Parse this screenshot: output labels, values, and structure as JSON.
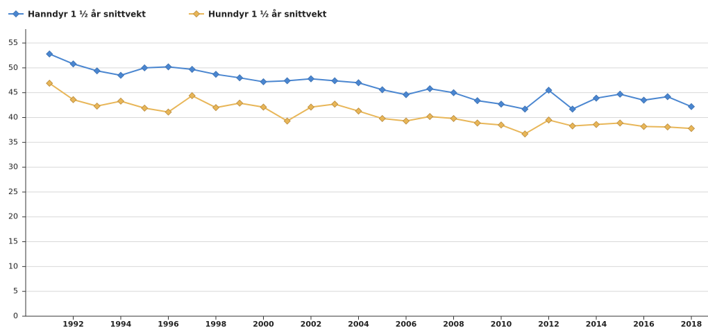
{
  "chart_data": {
    "type": "line",
    "x": [
      1991,
      1992,
      1993,
      1994,
      1995,
      1996,
      1997,
      1998,
      1999,
      2000,
      2001,
      2002,
      2003,
      2004,
      2005,
      2006,
      2007,
      2008,
      2009,
      2010,
      2011,
      2012,
      2013,
      2014,
      2015,
      2016,
      2017,
      2018
    ],
    "series": [
      {
        "name": "Hanndyr 1 ½ år snittvekt",
        "color": "#4a86d0",
        "values": [
          52.8,
          50.8,
          49.4,
          48.5,
          50.0,
          50.2,
          49.7,
          48.7,
          48.0,
          47.2,
          47.4,
          47.8,
          47.4,
          47.0,
          45.6,
          44.6,
          45.8,
          45.0,
          43.4,
          42.7,
          41.7,
          45.5,
          41.7,
          43.9,
          44.7,
          43.5,
          44.2,
          42.2
        ]
      },
      {
        "name": "Hunndyr 1 ½ år snittvekt",
        "color": "#e8b658",
        "values": [
          46.9,
          43.6,
          42.3,
          43.3,
          41.9,
          41.1,
          44.4,
          42.0,
          42.9,
          42.1,
          39.3,
          42.1,
          42.7,
          41.3,
          39.8,
          39.3,
          40.2,
          39.8,
          38.9,
          38.5,
          36.7,
          39.5,
          38.3,
          38.6,
          38.9,
          38.2,
          38.1,
          37.8
        ]
      }
    ],
    "xlim": [
      1990,
      2018.7
    ],
    "xticks": [
      1992,
      1994,
      1996,
      1998,
      2000,
      2002,
      2004,
      2006,
      2008,
      2010,
      2012,
      2014,
      2016,
      2018
    ],
    "ylim": [
      0,
      57.8
    ],
    "yticks": [
      0,
      5,
      10,
      15,
      20,
      25,
      30,
      35,
      40,
      45,
      50,
      55
    ],
    "grid": true,
    "legend": "top"
  }
}
